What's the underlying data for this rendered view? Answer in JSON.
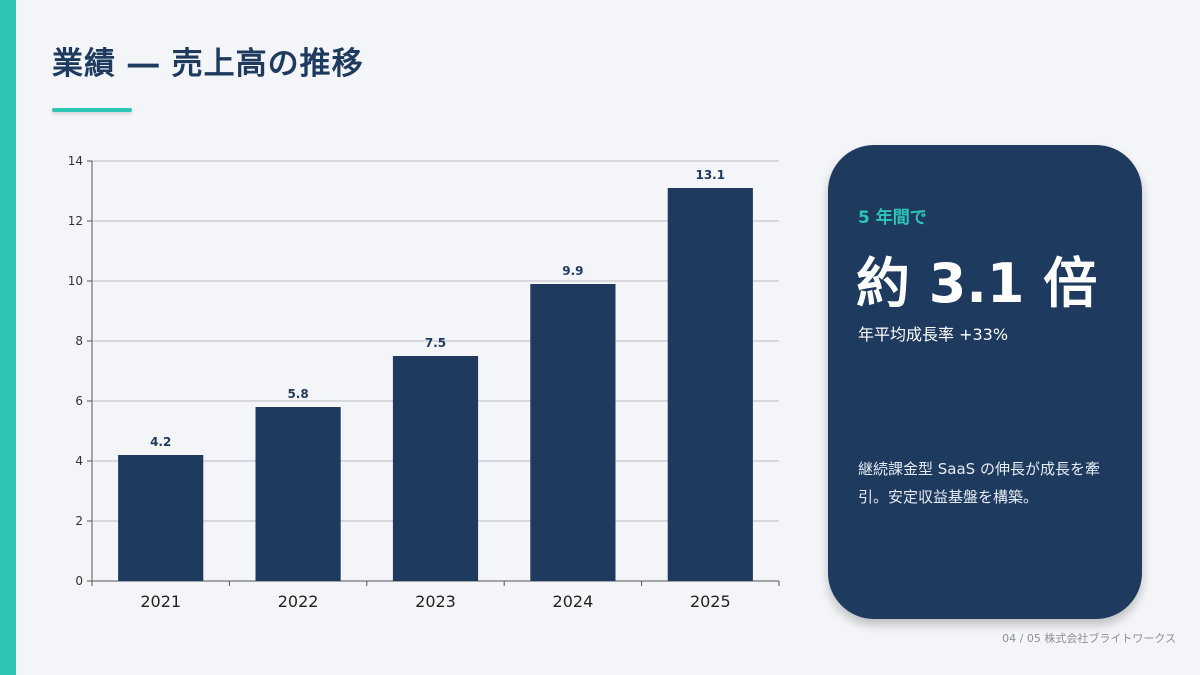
{
  "slide": {
    "title": "業績 ― 売上高の推移",
    "footer": "04 / 05 株式会社ブライトワークス",
    "accent_color": "#2ec4b6",
    "bar_color": "#1f3a5f"
  },
  "callout": {
    "kicker": "5 年間で",
    "headline": "約 3.1 倍",
    "subline": "年平均成長率 +33%",
    "description": "継続課金型 SaaS の伸長が成長を牽引。安定収益基盤を構築。"
  },
  "chart_data": {
    "type": "bar",
    "categories": [
      "2021",
      "2022",
      "2023",
      "2024",
      "2025"
    ],
    "values": [
      4.2,
      5.8,
      7.5,
      9.9,
      13.1
    ],
    "data_labels": [
      "4.2",
      "5.8",
      "7.5",
      "9.9",
      "13.1"
    ],
    "title": "",
    "xlabel": "",
    "ylabel": "",
    "ylim": [
      0,
      14
    ],
    "yticks": [
      0,
      2,
      4,
      6,
      8,
      10,
      12,
      14
    ],
    "grid": true,
    "legend": "none"
  }
}
